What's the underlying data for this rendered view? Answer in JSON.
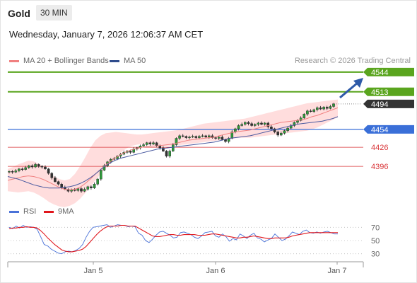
{
  "header": {
    "title": "Gold",
    "timeframe": "30 MIN"
  },
  "datetime": "Wednesday, January 7, 2026 12:06:37 AM CET",
  "legend": {
    "bollinger": "MA 20 + Bollinger Bands",
    "ma50": "MA 50",
    "credit": "Research © 2026 Trading Central"
  },
  "rsi_legend": {
    "rsi": "RSI",
    "ma9": "9MA"
  },
  "colors": {
    "resistance": "#5aa51e",
    "current": "#333333",
    "pivot": "#3a6fd8",
    "support": "#d9373a",
    "arrow": "#2e5aa8",
    "bands": "#ffd2d2",
    "ma20": "#f08080",
    "ma50": "#4a5aa0"
  },
  "chart_data": [
    {
      "type": "candlestick",
      "x_labels": [
        "Jan 5",
        "Jan 6",
        "Jan 7"
      ],
      "price_range": [
        4355,
        4555
      ],
      "levels": [
        {
          "value": 4544,
          "label": "4544",
          "role": "resistance"
        },
        {
          "value": 4513,
          "label": "4513",
          "role": "resistance"
        },
        {
          "value": 4494,
          "label": "4494",
          "role": "current"
        },
        {
          "value": 4454,
          "label": "4454",
          "role": "pivot"
        },
        {
          "value": 4426,
          "label": "4426",
          "role": "support"
        },
        {
          "value": 4396,
          "label": "4396",
          "role": "support"
        }
      ],
      "close_path": [
        4388,
        4387,
        4389,
        4392,
        4391,
        4394,
        4397,
        4395,
        4399,
        4396,
        4395,
        4392,
        4385,
        4378,
        4372,
        4368,
        4363,
        4360,
        4357,
        4359,
        4358,
        4361,
        4357,
        4360,
        4364,
        4362,
        4368,
        4376,
        4390,
        4397,
        4403,
        4407,
        4408,
        4412,
        4415,
        4418,
        4420,
        4418,
        4423,
        4425,
        4428,
        4430,
        4433,
        4431,
        4433,
        4428,
        4425,
        4420,
        4412,
        4420,
        4430,
        4440,
        4444,
        4443,
        4441,
        4442,
        4443,
        4441,
        4443,
        4444,
        4442,
        4444,
        4441,
        4440,
        4442,
        4438,
        4435,
        4440,
        4450,
        4455,
        4460,
        4462,
        4465,
        4463,
        4460,
        4462,
        4464,
        4462,
        4464,
        4458,
        4455,
        4450,
        4445,
        4448,
        4452,
        4456,
        4460,
        4465,
        4468,
        4472,
        4478,
        4483,
        4482,
        4485,
        4488,
        4486,
        4489,
        4487,
        4490,
        4494
      ],
      "ma20_path": [
        4374,
        4376,
        4378,
        4380,
        4381,
        4380,
        4378,
        4375,
        4371,
        4367,
        4363,
        4360,
        4359,
        4360,
        4363,
        4369,
        4376,
        4384,
        4391,
        4398,
        4404,
        4410,
        4415,
        4419,
        4422,
        4424,
        4426,
        4427,
        4428,
        4428,
        4429,
        4430,
        4431,
        4433,
        4435,
        4437,
        4438,
        4439,
        4440,
        4441,
        4442,
        4444,
        4446,
        4448,
        4450,
        4451,
        4452,
        4453,
        4455,
        4457,
        4459,
        4461,
        4463,
        4465,
        4466,
        4467,
        4468,
        4469,
        4471,
        4474,
        4476,
        4479,
        4482,
        4485,
        4488
      ],
      "bands_upper": [
        4392,
        4395,
        4399,
        4402,
        4405,
        4404,
        4400,
        4394,
        4386,
        4380,
        4376,
        4374,
        4376,
        4384,
        4396,
        4410,
        4425,
        4437,
        4444,
        4448,
        4449,
        4450,
        4449,
        4448,
        4447,
        4446,
        4446,
        4447,
        4448,
        4449,
        4450,
        4451,
        4452,
        4453,
        4455,
        4457,
        4459,
        4461,
        4463,
        4464,
        4465,
        4466,
        4467,
        4468,
        4469,
        4470,
        4471,
        4473,
        4475,
        4477,
        4479,
        4481,
        4483,
        4485,
        4487,
        4489,
        4491,
        4493,
        4495,
        4496,
        4497,
        4498,
        4499,
        4500,
        4501
      ],
      "bands_lower": [
        4357,
        4356,
        4355,
        4356,
        4357,
        4355,
        4351,
        4346,
        4340,
        4336,
        4333,
        4332,
        4334,
        4338,
        4345,
        4354,
        4364,
        4374,
        4384,
        4393,
        4402,
        4410,
        4418,
        4424,
        4428,
        4430,
        4431,
        4431,
        4430,
        4429,
        4428,
        4428,
        4428,
        4429,
        4430,
        4431,
        4432,
        4433,
        4434,
        4435,
        4436,
        4437,
        4438,
        4439,
        4440,
        4441,
        4441,
        4441,
        4442,
        4443,
        4444,
        4445,
        4446,
        4447,
        4448,
        4449,
        4450,
        4451,
        4452,
        4454,
        4457,
        4461,
        4465,
        4469,
        4473
      ],
      "ma50_path": [
        4380,
        4378,
        4376,
        4373,
        4370,
        4367,
        4365,
        4363,
        4362,
        4362,
        4362,
        4363,
        4364,
        4366,
        4369,
        4373,
        4378,
        4384,
        4391,
        4397,
        4402,
        4406,
        4409,
        4411,
        4413,
        4415,
        4417,
        4419,
        4421,
        4423,
        4424,
        4425,
        4426,
        4427,
        4428,
        4429,
        4430,
        4431,
        4432,
        4433,
        4434,
        4436,
        4438,
        4440,
        4441,
        4442,
        4443,
        4444,
        4446,
        4448,
        4450,
        4452,
        4454,
        4456,
        4458,
        4460,
        4462,
        4463,
        4464,
        4465,
        4466,
        4467,
        4469,
        4471,
        4474
      ]
    },
    {
      "type": "line",
      "name": "RSI",
      "y_ticks": [
        "70",
        "50",
        "30"
      ],
      "y_range": [
        20,
        80
      ],
      "series": [
        {
          "name": "RSI",
          "values": [
            70,
            68,
            72,
            69,
            73,
            70,
            71,
            70,
            67,
            56,
            44,
            42,
            37,
            34,
            31,
            30,
            33,
            34,
            33,
            35,
            38,
            44,
            55,
            64,
            70,
            71,
            72,
            73,
            74,
            70,
            72,
            74,
            73,
            73,
            71,
            72,
            71,
            61,
            58,
            50,
            47,
            52,
            58,
            63,
            64,
            61,
            58,
            54,
            55,
            62,
            63,
            61,
            59,
            55,
            53,
            57,
            62,
            63,
            64,
            57,
            55,
            60,
            56,
            49,
            53,
            51,
            60,
            57,
            53,
            58,
            61,
            54,
            52,
            48,
            51,
            53,
            60,
            55,
            50,
            52,
            57,
            63,
            61,
            59,
            64,
            66,
            62,
            61,
            63,
            61,
            63,
            64,
            62,
            60,
            60
          ]
        },
        {
          "name": "9MA",
          "values": [
            68,
            69,
            69,
            70,
            70,
            71,
            70,
            70,
            69,
            65,
            60,
            54,
            49,
            44,
            40,
            36,
            34,
            33,
            33,
            34,
            35,
            37,
            41,
            47,
            53,
            59,
            64,
            68,
            71,
            72,
            72,
            72,
            73,
            73,
            72,
            72,
            72,
            69,
            66,
            63,
            60,
            57,
            56,
            56,
            57,
            58,
            59,
            59,
            58,
            58,
            59,
            59,
            59,
            59,
            58,
            58,
            58,
            59,
            60,
            60,
            59,
            58,
            57,
            56,
            55,
            54,
            54,
            55,
            55,
            56,
            57,
            56,
            55,
            54,
            53,
            53,
            54,
            54,
            54,
            54,
            55,
            57,
            58,
            59,
            60,
            61,
            62,
            62,
            62,
            62,
            62,
            62,
            62,
            62,
            62
          ]
        }
      ]
    }
  ]
}
